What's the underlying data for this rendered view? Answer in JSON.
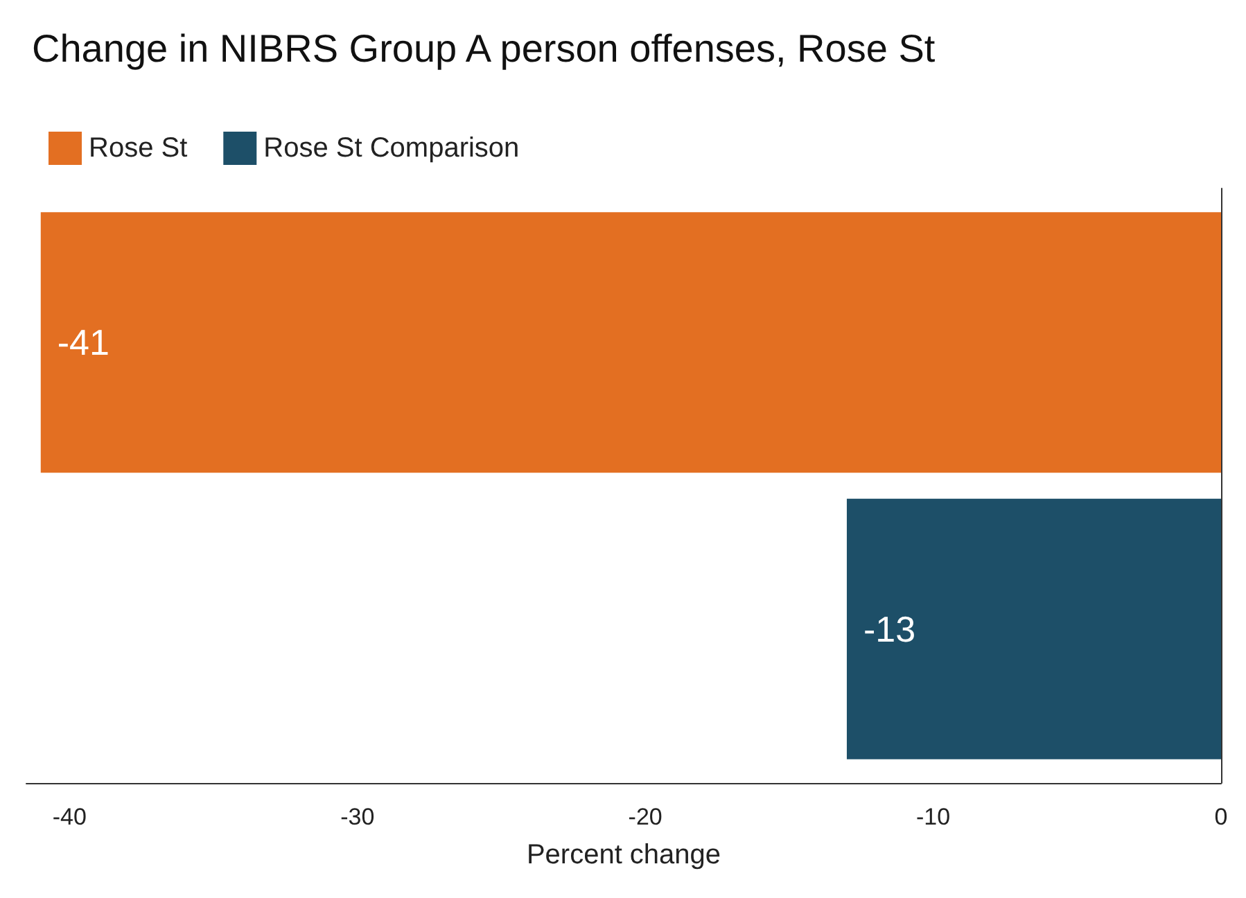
{
  "chart_data": {
    "type": "bar",
    "title": "Change in NIBRS Group A person offenses, Rose St",
    "xlabel": "Percent change",
    "orientation": "horizontal",
    "categories": [
      null
    ],
    "series": [
      {
        "name": "Rose St",
        "color": "#e36f22",
        "values": [
          -41
        ]
      },
      {
        "name": "Rose St Comparison",
        "color": "#1d4f68",
        "values": [
          -13
        ]
      }
    ],
    "xlim": [
      -41.5,
      0
    ],
    "xticks": [
      -40,
      -30,
      -20,
      -10,
      0
    ],
    "grid": false,
    "legend": "top left",
    "data_labels": true
  }
}
